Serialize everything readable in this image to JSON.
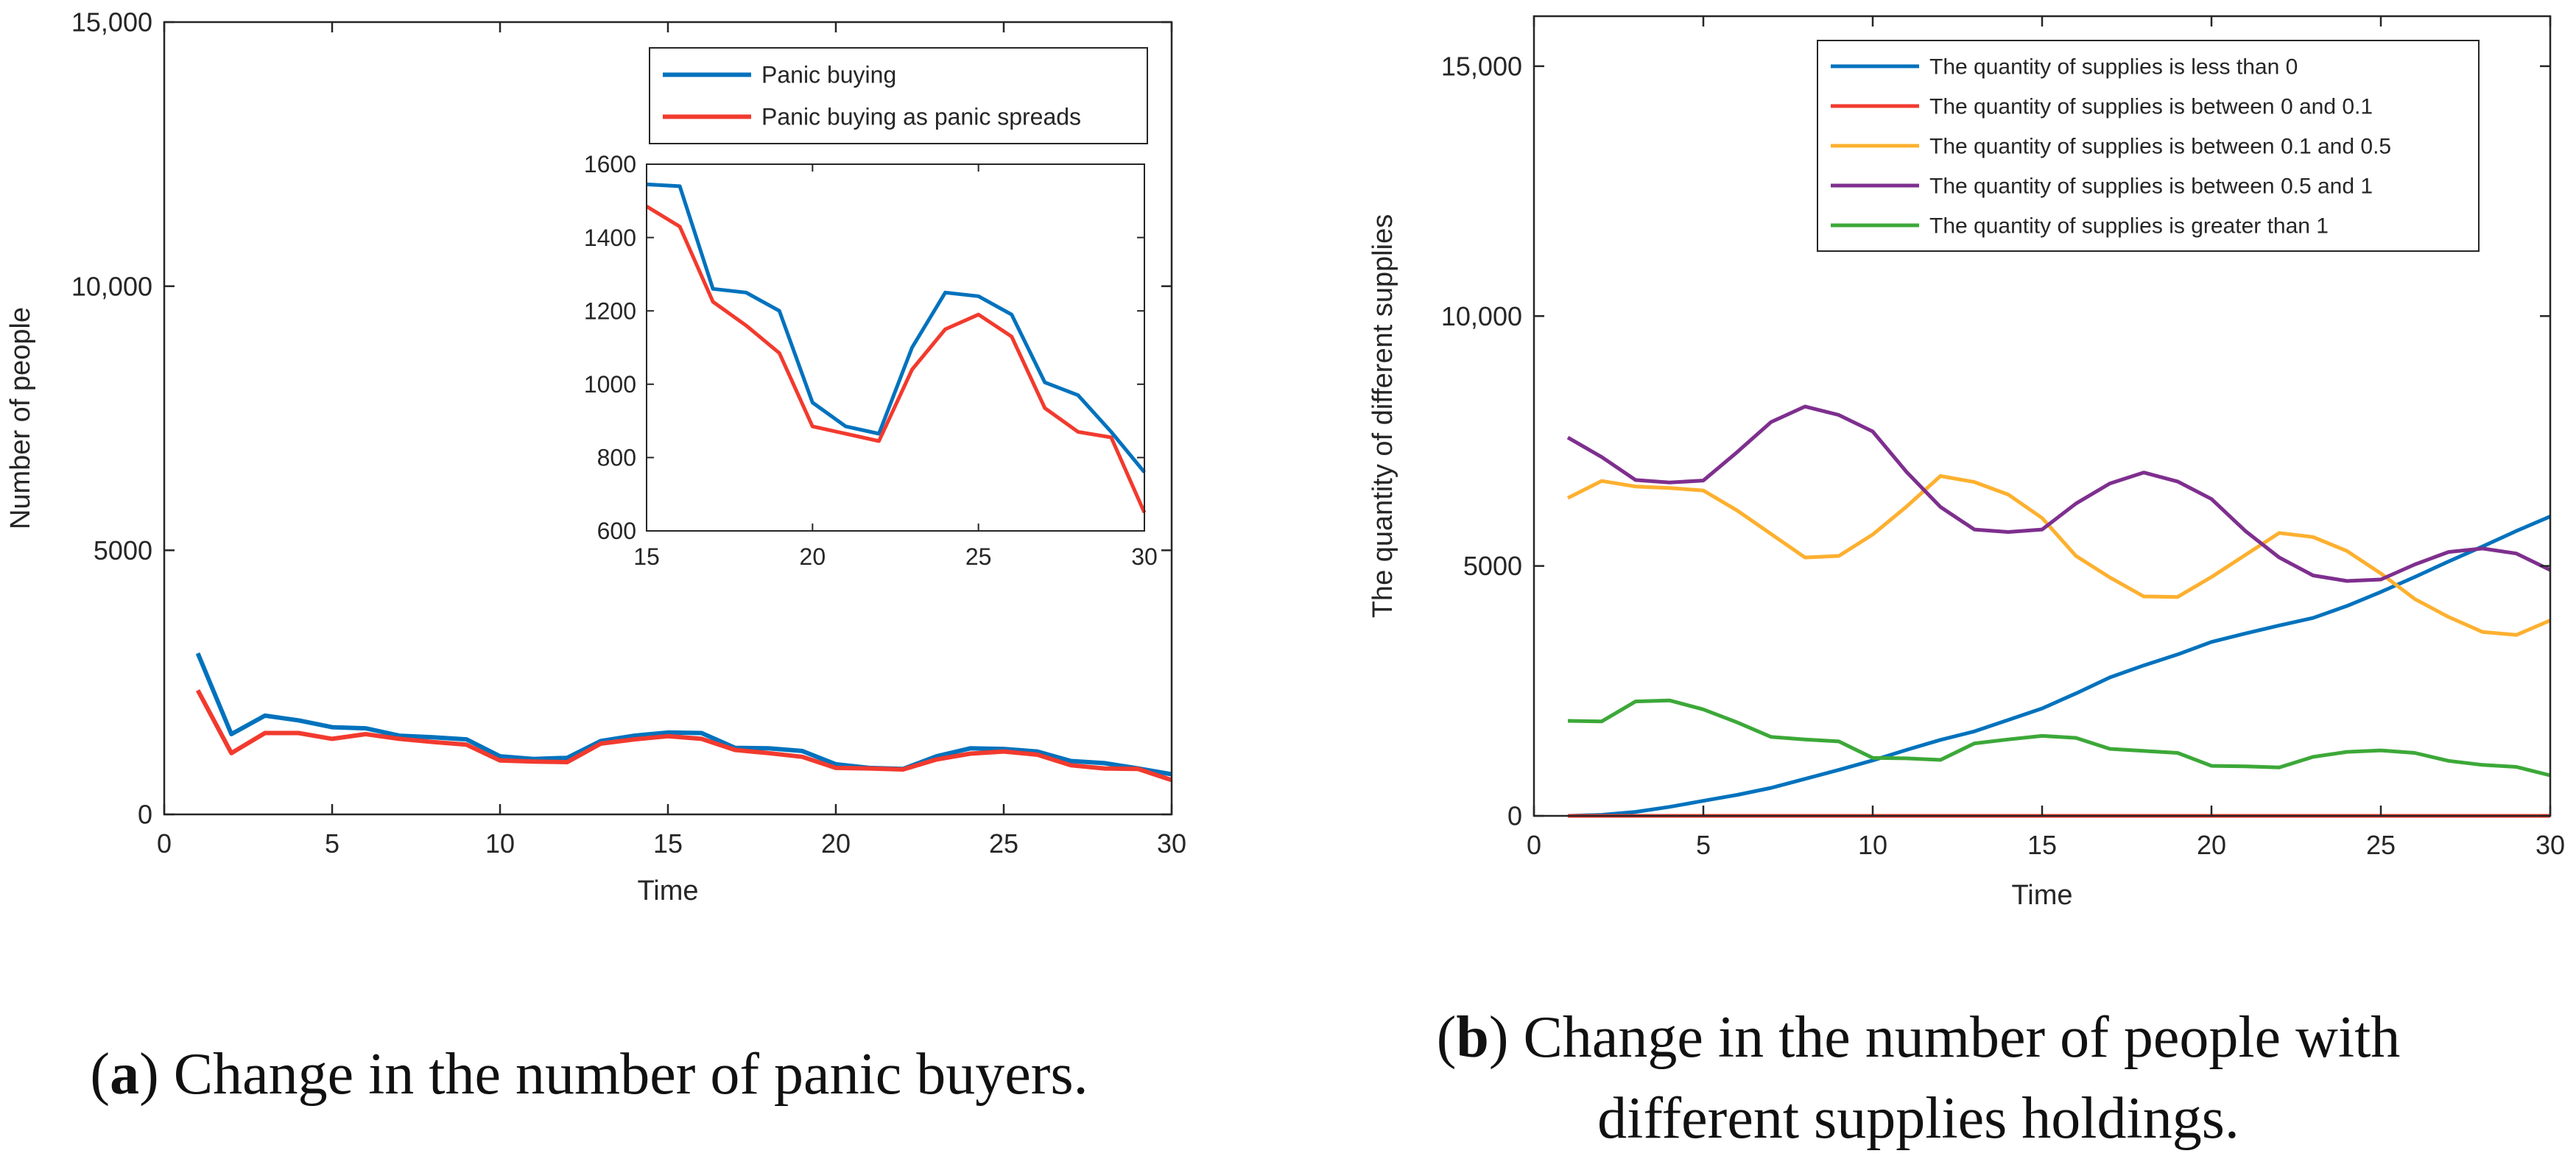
{
  "colors": {
    "blue": "#0072BD",
    "red": "#F23A2E",
    "orange": "#FDB02F",
    "purple": "#7E2F8E",
    "green": "#3CA838",
    "axis": "#262626"
  },
  "chart_data": [
    {
      "type": "line",
      "panel": "a",
      "title": "",
      "xlabel": "Time",
      "ylabel": "Number of people",
      "xlim": [
        0,
        30
      ],
      "ylim": [
        0,
        15000
      ],
      "xticks": [
        0,
        5,
        10,
        15,
        20,
        25,
        30
      ],
      "xtick_labels": [
        "0",
        "5",
        "10",
        "15",
        "20",
        "25",
        "30"
      ],
      "yticks": [
        0,
        5000,
        10000,
        15000
      ],
      "ytick_labels": [
        "0",
        "5000",
        "10,000",
        "15,000"
      ],
      "legend_position": "top-right",
      "x": [
        1,
        2,
        3,
        4,
        5,
        6,
        7,
        8,
        9,
        10,
        11,
        12,
        13,
        14,
        15,
        16,
        17,
        18,
        19,
        20,
        21,
        22,
        23,
        24,
        25,
        26,
        27,
        28,
        29,
        30
      ],
      "series": [
        {
          "name": "Panic buying",
          "color_key": "blue",
          "values": [
            3050,
            1520,
            1870,
            1780,
            1650,
            1630,
            1490,
            1460,
            1420,
            1100,
            1050,
            1070,
            1390,
            1490,
            1550,
            1540,
            1260,
            1250,
            1200,
            950,
            880,
            860,
            1100,
            1250,
            1240,
            1190,
            1010,
            970,
            870,
            760
          ]
        },
        {
          "name": "Panic buying as panic spreads",
          "color_key": "red",
          "values": [
            2350,
            1160,
            1540,
            1540,
            1430,
            1520,
            1430,
            1370,
            1320,
            1020,
            1000,
            990,
            1340,
            1420,
            1480,
            1430,
            1220,
            1160,
            1090,
            880,
            870,
            850,
            1040,
            1150,
            1190,
            1130,
            930,
            870,
            860,
            650
          ]
        }
      ],
      "caption": {
        "label": "a",
        "text": ") Change in the number of panic buyers."
      }
    },
    {
      "type": "line",
      "panel": "a-inset",
      "title": "",
      "xlabel": "",
      "ylabel": "",
      "xlim": [
        15,
        30
      ],
      "ylim": [
        600,
        1600
      ],
      "xticks": [
        15,
        20,
        25,
        30
      ],
      "xtick_labels": [
        "15",
        "20",
        "25",
        "30"
      ],
      "yticks": [
        600,
        800,
        1000,
        1200,
        1400,
        1600
      ],
      "ytick_labels": [
        "600",
        "800",
        "1000",
        "1200",
        "1400",
        "1600"
      ],
      "x": [
        15,
        16,
        17,
        18,
        19,
        20,
        21,
        22,
        23,
        24,
        25,
        26,
        27,
        28,
        29,
        30
      ],
      "series": [
        {
          "name": "Panic buying",
          "color_key": "blue",
          "values": [
            1545,
            1540,
            1260,
            1250,
            1200,
            950,
            885,
            865,
            1100,
            1250,
            1240,
            1190,
            1005,
            970,
            870,
            760
          ]
        },
        {
          "name": "Panic buying as panic spreads",
          "color_key": "red",
          "values": [
            1485,
            1430,
            1225,
            1160,
            1085,
            885,
            865,
            845,
            1040,
            1150,
            1190,
            1130,
            935,
            870,
            855,
            650
          ]
        }
      ]
    },
    {
      "type": "line",
      "panel": "b",
      "title": "",
      "xlabel": "Time",
      "ylabel": "The quantity of different supplies",
      "xlim": [
        0,
        30
      ],
      "ylim": [
        0,
        16000
      ],
      "xticks": [
        0,
        5,
        10,
        15,
        20,
        25,
        30
      ],
      "xtick_labels": [
        "0",
        "5",
        "10",
        "15",
        "20",
        "25",
        "30"
      ],
      "yticks": [
        0,
        5000,
        10000,
        15000
      ],
      "ytick_labels": [
        "0",
        "5000",
        "10,000",
        "15,000"
      ],
      "legend_position": "top-right",
      "x": [
        1,
        2,
        3,
        4,
        5,
        6,
        7,
        8,
        9,
        10,
        11,
        12,
        13,
        14,
        15,
        16,
        17,
        18,
        19,
        20,
        21,
        22,
        23,
        24,
        25,
        26,
        27,
        28,
        29,
        30
      ],
      "series": [
        {
          "name": "The quantity of supplies is less than 0",
          "color_key": "blue",
          "values": [
            0,
            20,
            80,
            180,
            300,
            420,
            560,
            740,
            920,
            1110,
            1320,
            1520,
            1690,
            1920,
            2150,
            2450,
            2770,
            3010,
            3230,
            3480,
            3650,
            3810,
            3960,
            4200,
            4480,
            4780,
            5090,
            5390,
            5700,
            5990
          ]
        },
        {
          "name": "The quantity of supplies is between 0 and 0.1",
          "color_key": "red",
          "values": [
            0,
            0,
            0,
            0,
            0,
            0,
            0,
            0,
            0,
            0,
            0,
            0,
            0,
            0,
            0,
            0,
            0,
            0,
            0,
            0,
            0,
            0,
            0,
            0,
            0,
            0,
            0,
            0,
            0,
            0
          ]
        },
        {
          "name": "The quantity of supplies is between 0.1 and 0.5",
          "color_key": "orange",
          "values": [
            6360,
            6700,
            6590,
            6560,
            6510,
            6110,
            5640,
            5170,
            5200,
            5630,
            6190,
            6800,
            6680,
            6430,
            5960,
            5200,
            4770,
            4390,
            4380,
            4780,
            5220,
            5660,
            5580,
            5300,
            4850,
            4340,
            3980,
            3680,
            3620,
            3910
          ]
        },
        {
          "name": "The quantity of supplies is between 0.5 and 1",
          "color_key": "purple",
          "values": [
            7570,
            7180,
            6720,
            6670,
            6710,
            7280,
            7880,
            8190,
            8020,
            7690,
            6880,
            6180,
            5730,
            5680,
            5730,
            6250,
            6650,
            6870,
            6690,
            6340,
            5700,
            5170,
            4810,
            4700,
            4730,
            5030,
            5280,
            5350,
            5250,
            4920
          ]
        },
        {
          "name": "The quantity of supplies is greater than 1",
          "color_key": "green",
          "values": [
            1900,
            1890,
            2290,
            2310,
            2130,
            1870,
            1580,
            1530,
            1490,
            1160,
            1150,
            1120,
            1450,
            1530,
            1600,
            1560,
            1340,
            1300,
            1260,
            1000,
            990,
            970,
            1180,
            1280,
            1310,
            1260,
            1100,
            1020,
            980,
            810
          ]
        }
      ],
      "caption": {
        "label": "b",
        "line1": ") Change in the number of people with",
        "line2": "different supplies holdings."
      }
    }
  ]
}
